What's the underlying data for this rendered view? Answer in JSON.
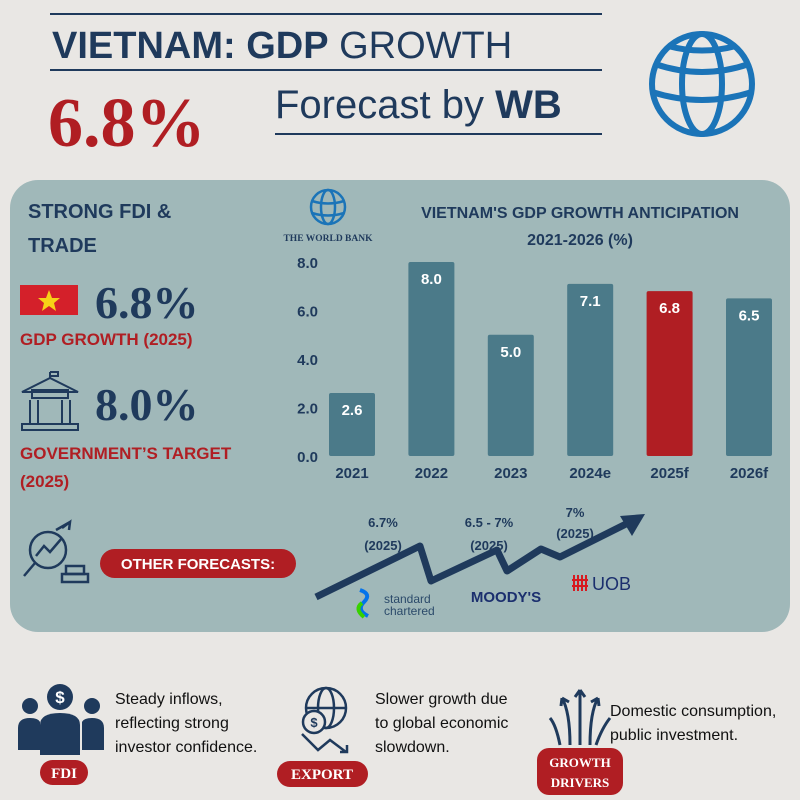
{
  "header": {
    "title_bold": "VIETNAM: GDP",
    "title_light": "GROWTH",
    "headline_value": "6.8%",
    "forecast_text": "Forecast by",
    "forecast_source": "WB"
  },
  "panel": {
    "heading": [
      "STRONG FDI &",
      "TRADE"
    ],
    "stats": [
      {
        "value": "6.8%",
        "label": [
          "GDP GROWTH (2025)"
        ]
      },
      {
        "value": "8.0%",
        "label": [
          "GOVERNMENT’S TARGET",
          "(2025)"
        ]
      }
    ]
  },
  "chart_data": {
    "type": "bar",
    "title": "VIETNAM'S GDP GROWTH ANTICIPATION",
    "subtitle": "2021-2026 (%)",
    "source": "THE WORLD BANK",
    "categories": [
      "2021",
      "2022",
      "2023",
      "2024e",
      "2025f",
      "2026f"
    ],
    "values": [
      2.6,
      8.0,
      5.0,
      7.1,
      6.8,
      6.5
    ],
    "value_labels": [
      "2.6",
      "8.0",
      "5.0",
      "7.1",
      "6.8",
      "6.5"
    ],
    "colors": [
      "#4b7a89",
      "#4b7a89",
      "#4b7a89",
      "#4b7a89",
      "#b01e23",
      "#4b7a89"
    ],
    "ylim": [
      0,
      8
    ],
    "yticks": [
      {
        "value": 0,
        "label": "0.0"
      },
      {
        "value": 2,
        "label": "2.0"
      },
      {
        "value": 4,
        "label": "4.0"
      },
      {
        "value": 6,
        "label": "6.0"
      },
      {
        "value": 8,
        "label": "8.0"
      }
    ],
    "grid": false
  },
  "forecasts": {
    "label": "OTHER FORECASTS:",
    "items": [
      {
        "value": "6.7%",
        "period": "(2025)",
        "source": [
          "standard",
          "chartered"
        ]
      },
      {
        "value": "6.5 - 7%",
        "period": "(2025)",
        "source": [
          "MOODY'S"
        ]
      },
      {
        "value": "7%",
        "period": "(2025)",
        "source": [
          "UOB"
        ]
      }
    ]
  },
  "cards": [
    {
      "tag": [
        "FDI"
      ],
      "text": [
        "Steady inflows,",
        "reflecting strong",
        "investor confidence."
      ]
    },
    {
      "tag": [
        "EXPORT"
      ],
      "text": [
        "Slower growth due",
        "to global economic",
        "slowdown."
      ]
    },
    {
      "tag": [
        "GROWTH",
        "DRIVERS"
      ],
      "text": [
        "Domestic consumption,",
        "public investment."
      ]
    }
  ]
}
